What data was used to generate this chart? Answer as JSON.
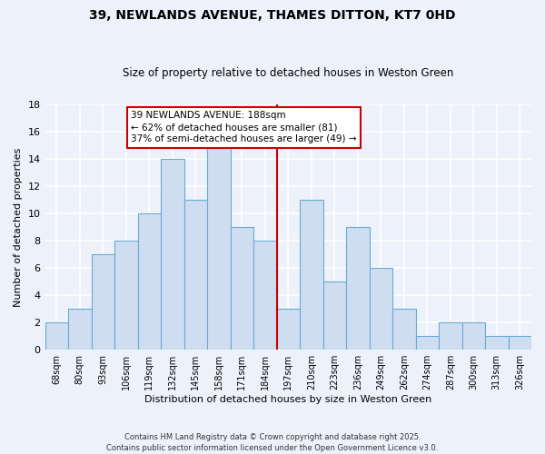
{
  "title": "39, NEWLANDS AVENUE, THAMES DITTON, KT7 0HD",
  "subtitle": "Size of property relative to detached houses in Weston Green",
  "xlabel": "Distribution of detached houses by size in Weston Green",
  "ylabel": "Number of detached properties",
  "bar_labels": [
    "68sqm",
    "80sqm",
    "93sqm",
    "106sqm",
    "119sqm",
    "132sqm",
    "145sqm",
    "158sqm",
    "171sqm",
    "184sqm",
    "197sqm",
    "210sqm",
    "223sqm",
    "236sqm",
    "249sqm",
    "262sqm",
    "274sqm",
    "287sqm",
    "300sqm",
    "313sqm",
    "326sqm"
  ],
  "bar_values": [
    2,
    3,
    7,
    8,
    10,
    14,
    11,
    15,
    9,
    8,
    3,
    11,
    5,
    9,
    6,
    3,
    1,
    2,
    2,
    1,
    1
  ],
  "bar_color": "#cfddf0",
  "bar_edge_color": "#6aaad4",
  "vline_color": "#cc0000",
  "annotation_text": "39 NEWLANDS AVENUE: 188sqm\n← 62% of detached houses are smaller (81)\n37% of semi-detached houses are larger (49) →",
  "ylim": [
    0,
    18
  ],
  "yticks": [
    0,
    2,
    4,
    6,
    8,
    10,
    12,
    14,
    16,
    18
  ],
  "footer": "Contains HM Land Registry data © Crown copyright and database right 2025.\nContains public sector information licensed under the Open Government Licence v3.0.",
  "background_color": "#edf2fa",
  "grid_color": "#ffffff"
}
